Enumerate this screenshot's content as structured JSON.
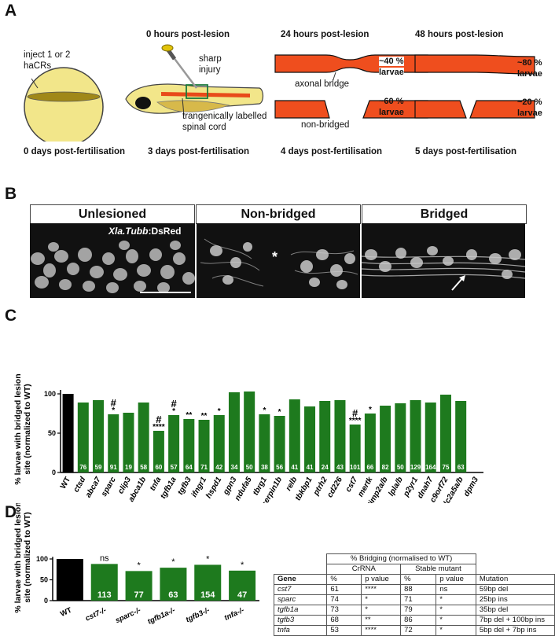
{
  "panels": {
    "a": "A",
    "b": "B",
    "c": "C",
    "d": "D"
  },
  "panel_a": {
    "hours": [
      "0 hours post-lesion",
      "24 hours post-lesion",
      "48 hours post-lesion"
    ],
    "days": [
      "0 days post-fertilisation",
      "3 days post-fertilisation",
      "4 days post-fertilisation",
      "5 days post-fertilisation"
    ],
    "inject_line1": "inject 1 or 2",
    "inject_line2": "haCRs",
    "sharp_line1": "sharp",
    "sharp_line2": "injury",
    "spinal_line1": "trangenically labelled",
    "spinal_line2": "spinal cord",
    "axonal_bridge": "axonal bridge",
    "non_bridged": "non-bridged",
    "pct_24_bridged": "~40 %",
    "pct_24_nonbridged": "~60 %",
    "pct_48_bridged": "~80 %",
    "pct_48_nonbridged": "~20 %",
    "larvae": "larvae"
  },
  "panel_b": {
    "titles": [
      "Unlesioned",
      "Non-bridged",
      "Bridged"
    ],
    "transgene_italic": "Xla.Tubb",
    "transgene_rest": ":DsRed",
    "asterisk": "*"
  },
  "chart_data": [
    {
      "type": "bar",
      "ylabel_line1": "% larvae with bridged lesion",
      "ylabel_line2": "site (normalized to WT)",
      "ylim": [
        0,
        110
      ],
      "yticks": [
        0,
        50,
        100
      ],
      "categories": [
        "WT",
        "ctsd",
        "abca7",
        "sparc",
        "clip3",
        "abca1b",
        "tnfa",
        "tgfb1a",
        "tgfb3",
        "ifngr1",
        "hspd1",
        "gpn3",
        "ndufa5",
        "tbrg1",
        "serpin1b",
        "relb",
        "tbkbp1",
        "ptrh2",
        "cd226",
        "cst7",
        "mertk",
        "timp2a/b",
        "lpla/b",
        "p2yr1",
        "dnah7",
        "c9orf72",
        "slc2a5a/b",
        "dpm3"
      ],
      "values": [
        100,
        89,
        92,
        74,
        76,
        89,
        53,
        73,
        68,
        67,
        73,
        102,
        103,
        74,
        72,
        93,
        84,
        91,
        92,
        61,
        75,
        85,
        88,
        92,
        89,
        99,
        91,
        0
      ],
      "n": [
        "",
        "76",
        "59",
        "91",
        "19",
        "58",
        "60",
        "57",
        "64",
        "71",
        "42",
        "34",
        "50",
        "38",
        "56",
        "41",
        "41",
        "24",
        "43",
        "101",
        "66",
        "82",
        "50",
        "129",
        "164",
        "75",
        "63",
        ""
      ],
      "stars": [
        "",
        "",
        "",
        "*",
        "",
        "",
        "****",
        "*",
        "**",
        "**",
        "*",
        "",
        "",
        "*",
        "*",
        "",
        "",
        "",
        "",
        "****",
        "*",
        "",
        "",
        "",
        "",
        "",
        "",
        ""
      ],
      "hash": [
        "",
        "",
        "",
        "#",
        "",
        "",
        "#",
        "#",
        "",
        "",
        "",
        "",
        "",
        "",
        "",
        "",
        "",
        "",
        "",
        "#",
        "",
        "",
        "",
        "",
        "",
        "",
        "",
        ""
      ],
      "colors": {
        "wt": "#000000",
        "mutant": "#1e7a1e"
      }
    },
    {
      "type": "bar",
      "ylabel_line1": "% larvae with bridged lesion",
      "ylabel_line2": "site (normalized to WT)",
      "ylim": [
        0,
        110
      ],
      "yticks": [
        0,
        50,
        100
      ],
      "categories": [
        "WT",
        "cst7-/-",
        "sparc-/-",
        "tgfb1a-/-",
        "tgfb3-/-",
        "tnfa-/-"
      ],
      "values": [
        100,
        88,
        71,
        79,
        86,
        72
      ],
      "n": [
        "",
        "113",
        "77",
        "63",
        "154",
        "47"
      ],
      "marks": [
        "",
        "ns",
        "*",
        "*",
        "*",
        "*"
      ]
    }
  ],
  "table": {
    "title": "% Bridging (normalised to WT)",
    "group1": "CrRNA",
    "group2": "Stable mutant",
    "headers": [
      "Gene",
      "%",
      "p value",
      "%",
      "p value",
      "Mutation"
    ],
    "rows": [
      [
        "cst7",
        "61",
        "****",
        "88",
        "ns",
        "59bp del"
      ],
      [
        "sparc",
        "74",
        "*",
        "71",
        "*",
        "25bp ins"
      ],
      [
        "tgfb1a",
        "73",
        "*",
        "79",
        "*",
        "35bp del"
      ],
      [
        "tgfb3",
        "68",
        "**",
        "86",
        "*",
        "7bp del + 100bp ins"
      ],
      [
        "tnfa",
        "53",
        "****",
        "72",
        "*",
        "5bp del + 7bp ins"
      ]
    ]
  }
}
